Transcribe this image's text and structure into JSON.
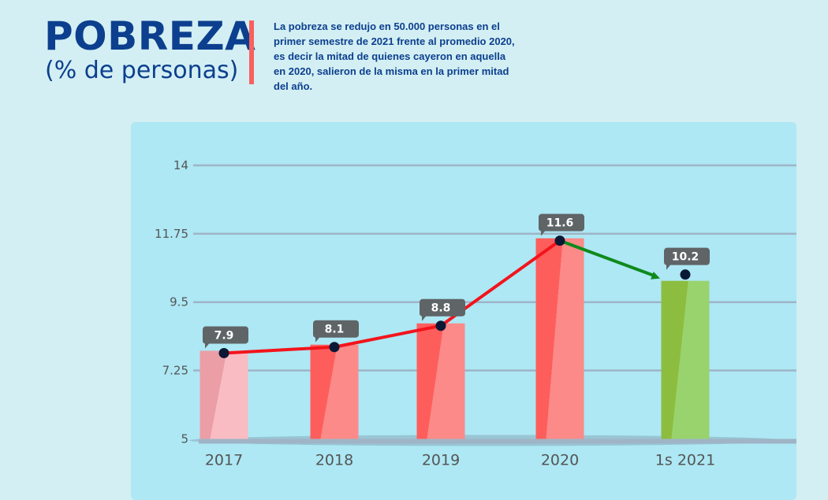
{
  "header": {
    "title": "POBREZA",
    "subtitle": "(% de personas)",
    "description": "La pobreza se redujo en 50.000 personas en el primer semestre de 2021 frente al promedio 2020, es decir la mitad de quienes cayeron en aquella en 2020, salieron de la misma en la primer mitad del año."
  },
  "chart_data": {
    "type": "bar",
    "title": "POBREZA",
    "subtitle": "(% de personas)",
    "categories": [
      "2017",
      "2018",
      "2019",
      "2020",
      "1s 2021"
    ],
    "values": [
      7.9,
      8.1,
      8.8,
      11.6,
      10.2
    ],
    "data_labels": [
      "7.9",
      "8.1",
      "8.8",
      "11.6",
      "10.2"
    ],
    "ylim": [
      5,
      14
    ],
    "yticks": [
      5,
      7.25,
      9.5,
      11.75,
      14
    ],
    "ytick_labels": [
      "5",
      "7.25",
      "9.5",
      "11.75",
      "14"
    ],
    "grid": true,
    "overlay_line": true,
    "colors": {
      "bar_2017": [
        "#f9bcc3",
        "#eb9ea6"
      ],
      "bar_red": [
        "#fb8a88",
        "#fd5e5c"
      ],
      "bar_green": [
        "#99d36e",
        "#8dbd3f"
      ],
      "line_rising": "#f3141c",
      "line_falling": "#0f8a1c",
      "marker": "#0a1836",
      "label_box": "#5f6466"
    }
  }
}
